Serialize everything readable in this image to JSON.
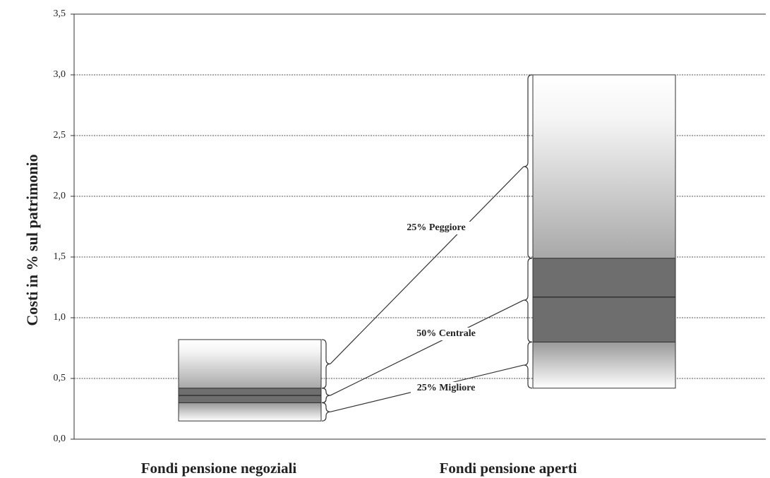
{
  "chart_data": {
    "type": "box",
    "y_label": "Costi in % sul patrimonio",
    "categories": [
      "Fondi pensione negoziali",
      "Fondi pensione aperti"
    ],
    "min": [
      0.15,
      0.42
    ],
    "q1": [
      0.3,
      0.8
    ],
    "median": [
      0.36,
      1.17
    ],
    "q3": [
      0.42,
      1.49
    ],
    "max": [
      0.82,
      3.0
    ],
    "annotations": [
      "25% Peggiore",
      "50% Centrale",
      "25% Migliore"
    ],
    "ylim": [
      0,
      3.5
    ],
    "yticks": [
      {
        "value": 0,
        "label": "0,0"
      },
      {
        "value": 0.5,
        "label": "0,5"
      },
      {
        "value": 1,
        "label": "1,0"
      },
      {
        "value": 1.5,
        "label": "1,5"
      },
      {
        "value": 2,
        "label": "2,0"
      },
      {
        "value": 2.5,
        "label": "2,5"
      },
      {
        "value": 3,
        "label": "3,0"
      },
      {
        "value": 3.5,
        "label": "3,5"
      }
    ],
    "grid": true,
    "color": "#6e6e6e"
  }
}
